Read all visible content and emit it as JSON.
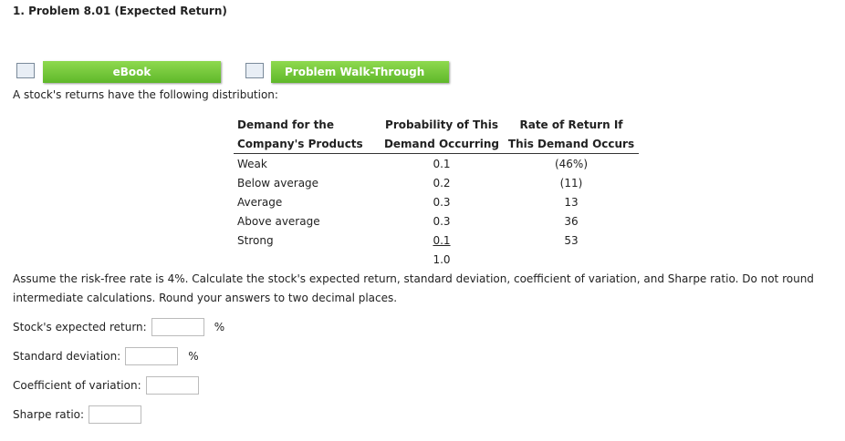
{
  "header": {
    "title": "1. Problem 8.01 (Expected Return)"
  },
  "buttons": [
    "eBook",
    "Problem Walk-Through"
  ],
  "intro": "A stock's returns have the following distribution:",
  "table": {
    "headers": [
      [
        "Demand for the",
        "Company's Products"
      ],
      [
        "Probability of This",
        "Demand Occurring"
      ],
      [
        "Rate of Return If",
        "This Demand Occurs"
      ]
    ],
    "rows": [
      [
        "Weak",
        "0.1",
        "(46%)"
      ],
      [
        "Below average",
        "0.2",
        "(11)"
      ],
      [
        "Average",
        "0.3",
        "13"
      ],
      [
        "Above average",
        "0.3",
        "36"
      ],
      [
        "Strong",
        "0.1",
        "53"
      ]
    ],
    "total": "1.0"
  },
  "instructions": "Assume the risk-free rate is 4%. Calculate the stock's expected return, standard deviation, coefficient of variation, and Sharpe ratio. Do not round intermediate calculations. Round your answers to two decimal places.",
  "fields": [
    {
      "label": "Stock's expected return:",
      "unit": "%"
    },
    {
      "label": "Standard deviation:",
      "unit": "%"
    },
    {
      "label": "Coefficient of variation:"
    },
    {
      "label": "Sharpe ratio:"
    }
  ]
}
